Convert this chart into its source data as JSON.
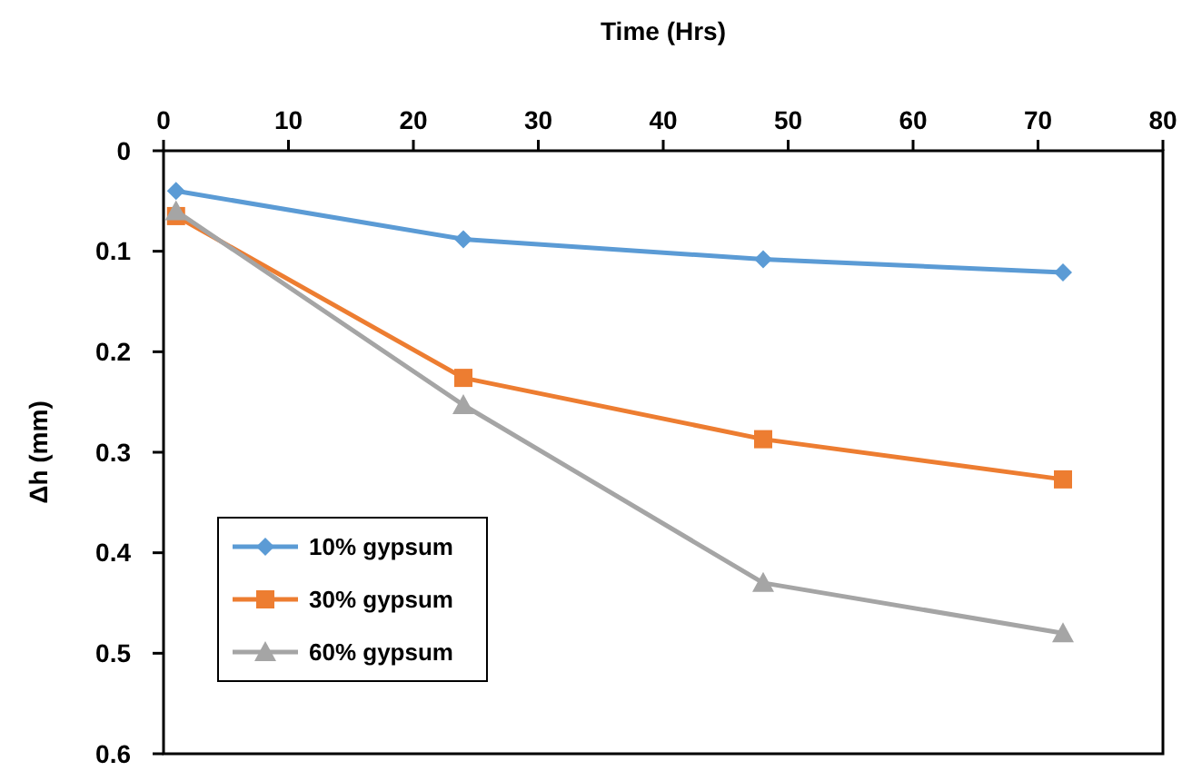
{
  "chart_data": {
    "type": "line",
    "xlabel": "Time (Hrs)",
    "ylabel": "Δh (mm)",
    "x": [
      1,
      24,
      48,
      72
    ],
    "xlim": [
      0,
      80
    ],
    "xticks": [
      0,
      10,
      20,
      30,
      40,
      50,
      60,
      70,
      80
    ],
    "ylim": [
      0.6,
      0
    ],
    "yticks": [
      0,
      0.1,
      0.2,
      0.3,
      0.4,
      0.5,
      0.6
    ],
    "grid": false,
    "legend": "bottom left",
    "series": [
      {
        "name": "10% gypsum",
        "color": "#5b9bd5",
        "marker": "diamond",
        "values": [
          0.04,
          0.088,
          0.108,
          0.121
        ]
      },
      {
        "name": "30% gypsum",
        "color": "#ed7d31",
        "marker": "square",
        "values": [
          0.065,
          0.226,
          0.287,
          0.327
        ]
      },
      {
        "name": "60% gypsum",
        "color": "#a5a5a5",
        "marker": "triangle",
        "values": [
          0.06,
          0.253,
          0.43,
          0.48
        ]
      }
    ]
  }
}
